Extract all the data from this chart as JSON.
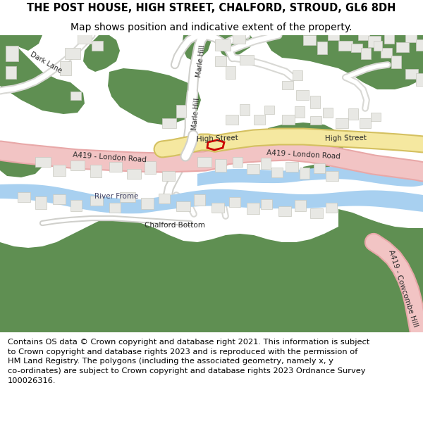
{
  "title_line1": "THE POST HOUSE, HIGH STREET, CHALFORD, STROUD, GL6 8DH",
  "title_line2": "Map shows position and indicative extent of the property.",
  "footer_lines": [
    "Contains OS data © Crown copyright and database right 2021. This information is subject",
    "to Crown copyright and database rights 2023 and is reproduced with the permission of",
    "HM Land Registry. The polygons (including the associated geometry, namely x, y",
    "co-ordinates) are subject to Crown copyright and database rights 2023 Ordnance Survey",
    "100026316."
  ],
  "bg_color": "#ffffff",
  "map_bg": "#ffffff",
  "green_color": "#5f8f52",
  "road_pink": "#f2c4c4",
  "road_pink_edge": "#e8a8a8",
  "road_yellow": "#f5e8a0",
  "road_yellow_edge": "#d4c060",
  "river_blue": "#a8d0f0",
  "plot_red": "#cc0000",
  "building_fill": "#e8e8e4",
  "building_edge": "#c8c8c0",
  "road_light": "#f0f0ee",
  "road_light_edge": "#d0d0cc",
  "title_fontsize": 10.5,
  "footer_fontsize": 8.2,
  "label_fontsize": 7.5
}
